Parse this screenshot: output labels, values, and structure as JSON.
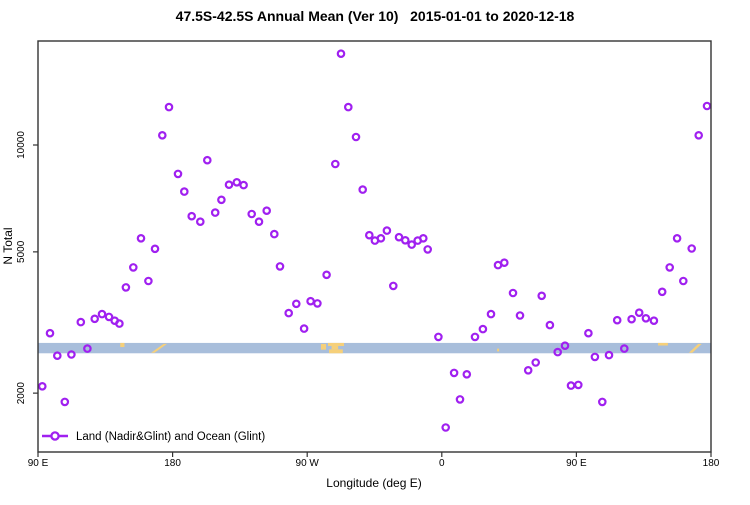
{
  "title": "47.5S-42.5S Annual Mean (Ver 10)   2015-01-01 to 2020-12-18",
  "chart_data": {
    "type": "scatter",
    "title": "47.5S-42.5S Annual Mean (Ver 10)   2015-01-01 to 2020-12-18",
    "xlabel": "Longitude (deg E)",
    "ylabel": "N Total",
    "x_axis": {
      "note": "axis spans 450 degrees of longitude starting at 90E wrapping east through 180, 90W, 0, 90E to 180; deg values below are degrees east of the left edge (90E)",
      "tick_deg": [
        0,
        90,
        180,
        270,
        360,
        450
      ],
      "tick_labels": [
        "90 E",
        "180",
        "90 W",
        "0",
        "90 E",
        "180"
      ],
      "range_deg": [
        0,
        450
      ]
    },
    "y_axis": {
      "scale": "log10",
      "tick_values": [
        2000,
        5000,
        10000
      ],
      "tick_labels": [
        "2000",
        "5000",
        "10000"
      ],
      "range": [
        1360,
        19700
      ],
      "grid": false
    },
    "legend": {
      "label": "Land (Nadir&Glint) and Ocean (Glint)",
      "position": "bottom-left"
    },
    "marker": {
      "shape": "open-circle",
      "color": "#a020f0"
    },
    "map_band": {
      "description": "horizontal strip showing ocean (blue) and land (tan) along the 47.5S-42.5S latitude band",
      "ocean_color": "#a8bedb",
      "land_color": "#f6d07a",
      "n_top": 2770,
      "n_bottom": 2590,
      "land_patches": [
        {
          "name": "tasmania",
          "kind": "rect",
          "deg0": 55.0,
          "deg1": 57.8,
          "f0": 0.0,
          "f1": 0.4
        },
        {
          "name": "new-zealand",
          "kind": "diag",
          "deg0": 75.6,
          "deg1": 86.3
        },
        {
          "name": "south-america-coast",
          "kind": "rect",
          "deg0": 189.2,
          "deg1": 192.6,
          "f0": 0.1,
          "f1": 0.65
        },
        {
          "name": "south-america-top",
          "kind": "rect",
          "deg0": 193.9,
          "deg1": 204.6,
          "f0": 0.0,
          "f1": 0.3
        },
        {
          "name": "south-america-waist",
          "kind": "rect",
          "deg0": 196.3,
          "deg1": 200.7,
          "f0": 0.3,
          "f1": 0.62
        },
        {
          "name": "south-america-bottom",
          "kind": "rect",
          "deg0": 194.6,
          "deg1": 203.8,
          "f0": 0.62,
          "f1": 1.0
        },
        {
          "name": "small-island",
          "kind": "rect",
          "deg0": 307.0,
          "deg1": 308.3,
          "f0": 0.55,
          "f1": 0.82
        },
        {
          "name": "tasmania-repeat",
          "kind": "rect",
          "deg0": 414.6,
          "deg1": 421.2,
          "f0": 0.0,
          "f1": 0.25
        },
        {
          "name": "new-zealand-repeat",
          "kind": "diag",
          "deg0": 435.2,
          "deg1": 443.8
        }
      ]
    },
    "series": [
      {
        "name": "Land (Nadir&Glint) and Ocean (Glint)",
        "points": [
          [
            2.9,
            2090
          ],
          [
            8.0,
            2950
          ],
          [
            12.9,
            2550
          ],
          [
            17.9,
            1890
          ],
          [
            22.3,
            2570
          ],
          [
            28.6,
            3170
          ],
          [
            33.0,
            2670
          ],
          [
            37.9,
            3240
          ],
          [
            42.8,
            3340
          ],
          [
            47.5,
            3280
          ],
          [
            51.3,
            3200
          ],
          [
            54.4,
            3140
          ],
          [
            58.8,
            3970
          ],
          [
            63.7,
            4520
          ],
          [
            68.9,
            5460
          ],
          [
            73.8,
            4140
          ],
          [
            78.2,
            5100
          ],
          [
            83.1,
            10650
          ],
          [
            87.6,
            12790
          ],
          [
            93.6,
            8290
          ],
          [
            97.8,
            7390
          ],
          [
            102.8,
            6300
          ],
          [
            108.5,
            6080
          ],
          [
            113.2,
            9060
          ],
          [
            118.5,
            6450
          ],
          [
            122.6,
            7010
          ],
          [
            127.7,
            7730
          ],
          [
            132.9,
            7850
          ],
          [
            137.5,
            7710
          ],
          [
            142.9,
            6390
          ],
          [
            147.8,
            6080
          ],
          [
            152.9,
            6530
          ],
          [
            158.0,
            5610
          ],
          [
            161.8,
            4550
          ],
          [
            167.6,
            3360
          ],
          [
            172.7,
            3570
          ],
          [
            177.9,
            3040
          ],
          [
            182.3,
            3630
          ],
          [
            186.8,
            3580
          ],
          [
            193.0,
            4310
          ],
          [
            198.8,
            8840
          ],
          [
            202.6,
            18080
          ],
          [
            207.5,
            12790
          ],
          [
            212.6,
            10530
          ],
          [
            217.1,
            7490
          ],
          [
            221.5,
            5570
          ],
          [
            225.3,
            5380
          ],
          [
            229.3,
            5460
          ],
          [
            233.3,
            5740
          ],
          [
            237.6,
            4010
          ],
          [
            241.4,
            5500
          ],
          [
            245.6,
            5390
          ],
          [
            249.9,
            5240
          ],
          [
            253.9,
            5380
          ],
          [
            257.6,
            5460
          ],
          [
            260.6,
            5080
          ],
          [
            267.7,
            2880
          ],
          [
            272.6,
            1600
          ],
          [
            278.2,
            2280
          ],
          [
            282.2,
            1920
          ],
          [
            286.7,
            2260
          ],
          [
            292.2,
            2880
          ],
          [
            297.5,
            3030
          ],
          [
            302.9,
            3340
          ],
          [
            307.6,
            4590
          ],
          [
            311.8,
            4660
          ],
          [
            317.6,
            3830
          ],
          [
            322.3,
            3310
          ],
          [
            327.8,
            2320
          ],
          [
            332.8,
            2440
          ],
          [
            336.8,
            3760
          ],
          [
            342.3,
            3110
          ],
          [
            347.5,
            2610
          ],
          [
            352.4,
            2720
          ],
          [
            356.4,
            2100
          ],
          [
            361.3,
            2110
          ],
          [
            368.0,
            2950
          ],
          [
            372.4,
            2530
          ],
          [
            377.3,
            1890
          ],
          [
            381.8,
            2560
          ],
          [
            387.3,
            3210
          ],
          [
            392.0,
            2670
          ],
          [
            396.9,
            3230
          ],
          [
            402.0,
            3370
          ],
          [
            406.5,
            3250
          ],
          [
            411.8,
            3200
          ],
          [
            417.4,
            3860
          ],
          [
            422.4,
            4520
          ],
          [
            427.3,
            5460
          ],
          [
            431.5,
            4140
          ],
          [
            437.1,
            5110
          ],
          [
            441.8,
            10650
          ],
          [
            447.3,
            12880
          ]
        ]
      }
    ]
  }
}
